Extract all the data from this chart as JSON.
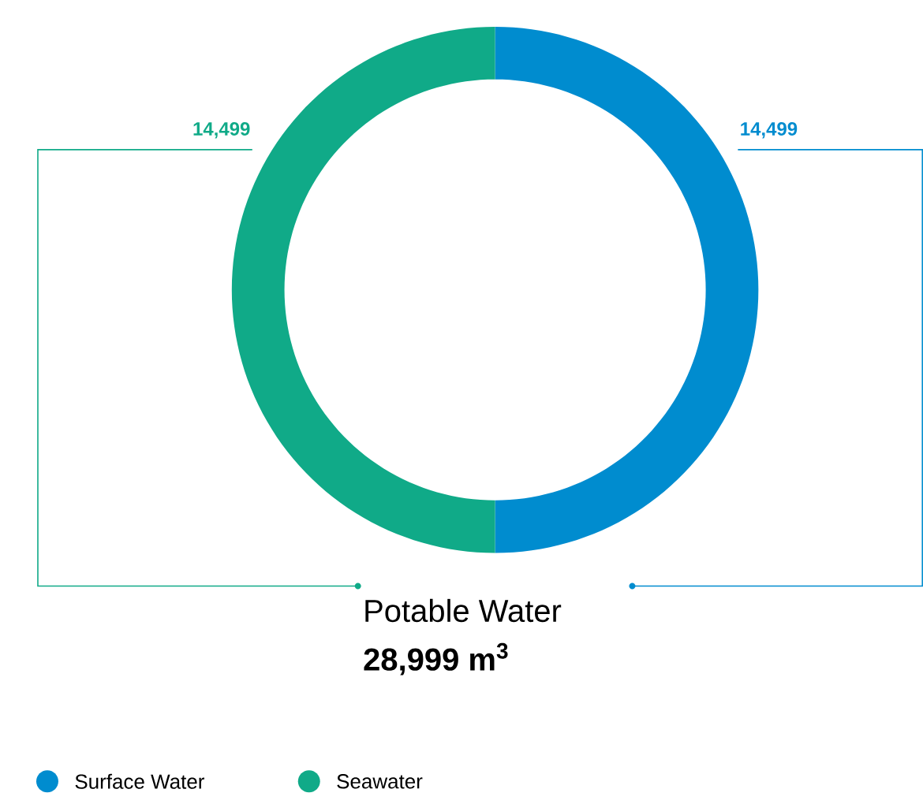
{
  "chart_data": {
    "type": "donut",
    "title": "Potable Water",
    "subtitle": "28,999 m$^{3}$",
    "categories": [
      "Surface Water",
      "Seawater"
    ],
    "values": [
      14499,
      14499
    ],
    "colors": [
      "#008ccf",
      "#10aa88"
    ],
    "value_labels": [
      "14,499",
      "14,499"
    ],
    "legend": "bottom"
  }
}
